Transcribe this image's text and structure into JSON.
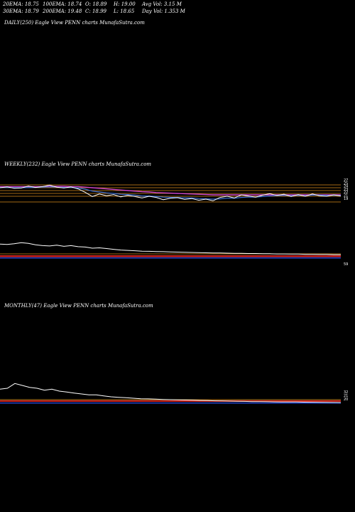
{
  "header": {
    "row1": [
      "20EMA: 18.75",
      "100EMA: 18.74",
      "O: 18.89",
      "H: 19.00",
      "Avg Vol: 3.15 M"
    ],
    "row2": [
      "30EMA: 18.79",
      "200EMA: 19.48",
      "C: 18.99",
      "L: 18.65",
      "Day Vol: 1.353 M"
    ]
  },
  "panels": {
    "daily_title": "DAILY(250) Eagle   View  PENN  charts MunafaSutra.com",
    "weekly_title": "WEEKLY(232) Eagle   View  PENN  charts MunafaSutra.com",
    "monthly_title": "MONTHLY(47) Eagle   View  PENN  charts MunafaSutra.com"
  },
  "colors": {
    "background": "#000000",
    "price": "#ffffff",
    "ema_fast": "#3b6fd6",
    "ema_slow": "#cc44cc",
    "sr_line": "#d98a1c",
    "indicator_red": "#cc2222",
    "indicator_blue": "#2244cc"
  },
  "chart_data": [
    {
      "type": "line",
      "name": "weekly",
      "price": [
        24.0,
        24.3,
        23.8,
        23.9,
        24.6,
        24.1,
        24.4,
        24.9,
        24.2,
        23.9,
        24.3,
        23.6,
        22.4,
        20.9,
        21.8,
        21.2,
        21.6,
        20.8,
        21.3,
        20.9,
        20.4,
        21.0,
        20.6,
        19.8,
        20.3,
        20.5,
        19.9,
        20.2,
        19.6,
        20.0,
        19.4,
        20.6,
        21.0,
        20.4,
        21.5,
        21.1,
        20.7,
        21.4,
        21.9,
        21.3,
        21.7,
        20.9,
        21.6,
        21.0,
        21.8,
        21.2,
        21.0,
        21.5,
        21.1
      ],
      "ema_fast": [
        24.1,
        24.1,
        24.0,
        24.0,
        24.1,
        24.1,
        24.2,
        24.3,
        24.2,
        24.1,
        24.1,
        23.9,
        23.5,
        22.8,
        22.5,
        22.2,
        22.0,
        21.7,
        21.6,
        21.4,
        21.1,
        21.1,
        20.9,
        20.7,
        20.6,
        20.6,
        20.4,
        20.4,
        20.2,
        20.1,
        20.0,
        20.1,
        20.3,
        20.3,
        20.6,
        20.7,
        20.7,
        20.9,
        21.1,
        21.2,
        21.3,
        21.2,
        21.3,
        21.2,
        21.4,
        21.4,
        21.3,
        21.3,
        21.3
      ],
      "ema_slow": [
        24.4,
        24.4,
        24.4,
        24.4,
        24.4,
        24.4,
        24.4,
        24.5,
        24.5,
        24.5,
        24.4,
        24.4,
        24.2,
        24.0,
        23.8,
        23.6,
        23.4,
        23.2,
        23.0,
        22.8,
        22.6,
        22.5,
        22.3,
        22.2,
        22.1,
        22.0,
        21.9,
        21.8,
        21.7,
        21.6,
        21.5,
        21.5,
        21.5,
        21.5,
        21.5,
        21.5,
        21.5,
        21.5,
        21.5,
        21.5,
        21.5,
        21.5,
        21.5,
        21.5,
        21.5,
        21.5,
        21.5,
        21.5,
        21.5
      ],
      "ylim": [
        18,
        27
      ],
      "levels": [
        25,
        24,
        23,
        22,
        21,
        19
      ],
      "right_labels": [
        "27",
        "25",
        "24",
        "23",
        "22",
        "21",
        "19"
      ],
      "indicator": {
        "values": [
          72,
          70,
          74,
          80,
          76,
          68,
          64,
          62,
          66,
          60,
          64,
          58,
          56,
          50,
          52,
          48,
          44,
          40,
          38,
          36,
          34,
          33,
          32,
          31,
          30,
          29,
          28,
          27,
          26,
          25,
          24,
          24,
          23,
          22,
          22,
          21,
          21,
          20,
          20,
          19,
          19,
          18,
          18,
          17,
          17,
          16,
          16,
          15,
          15
        ],
        "ylim": [
          0,
          100
        ],
        "label": "59"
      }
    },
    {
      "type": "line",
      "name": "monthly",
      "price": [
        32,
        33,
        38,
        36,
        34,
        33,
        31,
        32,
        30,
        29,
        28,
        27,
        26,
        26,
        25,
        24,
        23.5,
        23,
        22.5,
        22,
        21.8,
        21.5,
        21.2,
        21,
        20.8,
        20.6,
        20.4,
        20.2,
        20,
        19.8,
        19.7,
        19.5,
        19.3,
        19.2,
        19,
        18.9,
        18.8,
        18.7,
        18.6,
        18.5,
        18.5,
        18.4,
        18.3,
        18.2,
        18.1,
        18,
        17.9
      ],
      "levels": [
        21,
        20
      ],
      "right_labels": [
        "32",
        "21",
        "20"
      ],
      "ylim": [
        15,
        45
      ]
    }
  ]
}
